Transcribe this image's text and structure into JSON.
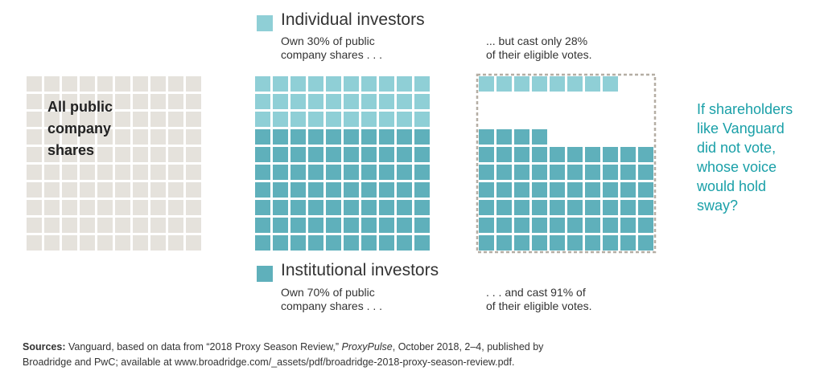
{
  "colors": {
    "all": "#e5e2dc",
    "individual": "#8fcfd6",
    "institutional": "#5fb0bb",
    "accent": "#1aa0a8",
    "dashed_border": "#b5aea4"
  },
  "legend": {
    "individual": {
      "label": "Individual investors",
      "own_note": "Own 30% of public\ncompany shares . . .",
      "vote_note": "... but cast only 28%\nof their eligible votes."
    },
    "institutional": {
      "label": "Institutional investors",
      "own_note": "Own 70% of public\ncompany shares . . .",
      "vote_note": ". . . and cast 91% of\nof their eligible votes."
    }
  },
  "grid_title": "All public\ncompany\nshares",
  "question": "If shareholders\nlike Vanguard\ndid not vote,\nwhose voice\nwould hold\nsway?",
  "sources": {
    "label": "Sources:",
    "text_before": " Vanguard, based on data from “2018 Proxy Season Review,” ",
    "publication": "ProxyPulse",
    "text_after": ", October 2018, 2–4, published by Broadridge and PwC; available at www.broadridge.com/_assets/pdf/broadridge-2018-proxy-season-review.pdf."
  },
  "chart_data": [
    {
      "type": "waffle",
      "grid": [
        10,
        10
      ],
      "series": [
        {
          "values": [
            100
          ]
        }
      ]
    },
    {
      "type": "waffle",
      "grid": [
        10,
        10
      ],
      "series": [
        {
          "name": "Individual investors",
          "values": [
            30
          ]
        },
        {
          "name": "Institutional investors",
          "values": [
            70
          ]
        }
      ]
    },
    {
      "type": "waffle",
      "grid": [
        10,
        10
      ],
      "series": [
        {
          "name": "Individual investors",
          "values": [
            8
          ]
        },
        {
          "name": "Institutional investors",
          "values": [
            64
          ]
        }
      ]
    }
  ]
}
